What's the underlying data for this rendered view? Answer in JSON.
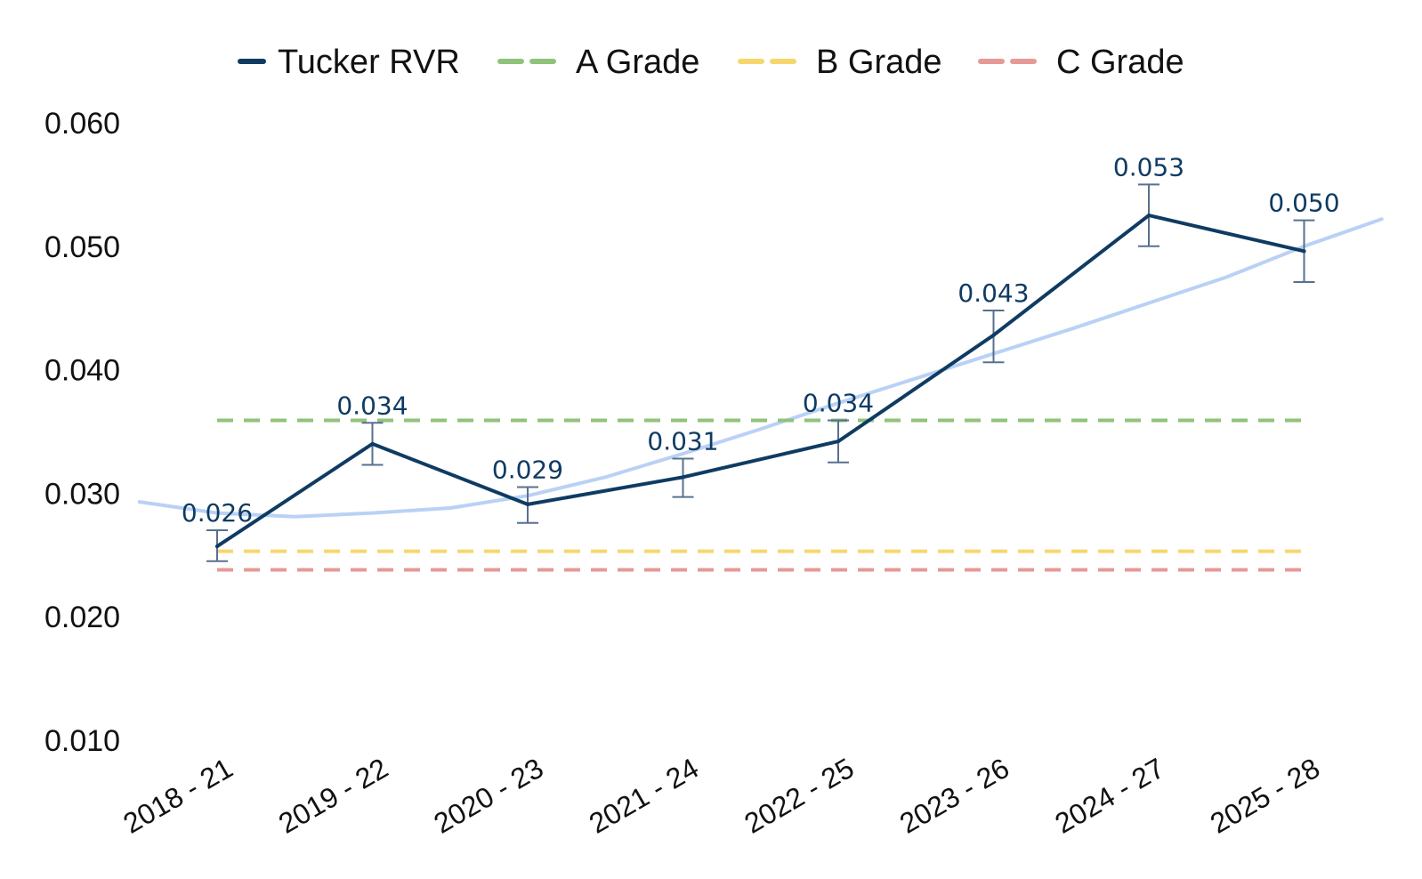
{
  "chart_data": {
    "type": "line",
    "title": "",
    "xlabel": "",
    "ylabel": "",
    "categories": [
      "2018 - 21",
      "2019 - 22",
      "2020 - 23",
      "2021 - 24",
      "2022 - 25",
      "2023 - 26",
      "2024 - 27",
      "2025 - 28"
    ],
    "ylim": [
      0.01,
      0.06
    ],
    "yticks": [
      "0.060",
      "0.050",
      "0.040",
      "0.030",
      "0.020",
      "0.010"
    ],
    "ytick_values": [
      0.06,
      0.05,
      0.04,
      0.03,
      0.02,
      0.01
    ],
    "grid": false,
    "legend_position": "top-center",
    "series": [
      {
        "name": "Tucker RVR",
        "color": "#0f3b63",
        "values": [
          0.0257,
          0.034,
          0.0291,
          0.0313,
          0.0342,
          0.0428,
          0.0525,
          0.0496
        ],
        "labels": [
          "0.026",
          "0.034",
          "0.029",
          "0.031",
          "0.034",
          "0.043",
          "0.053",
          "0.050"
        ],
        "error_low": [
          0.0245,
          0.0323,
          0.0276,
          0.0297,
          0.0325,
          0.0406,
          0.05,
          0.0471
        ],
        "error_high": [
          0.027,
          0.0357,
          0.0305,
          0.0328,
          0.0359,
          0.0448,
          0.055,
          0.0521
        ],
        "error_color": "#58708f"
      }
    ],
    "reference_lines": [
      {
        "name": "A Grade",
        "value": 0.0359,
        "color": "#8fc37a"
      },
      {
        "name": "B Grade",
        "value": 0.0253,
        "color": "#f7d66d"
      },
      {
        "name": "C Grade",
        "value": 0.0238,
        "color": "#e59a95"
      }
    ],
    "trend_line": {
      "color": "#b9d1f5",
      "x": [
        -0.5,
        0.0,
        0.5,
        1.0,
        1.5,
        2.0,
        2.5,
        3.0,
        3.5,
        4.0,
        4.5,
        5.0,
        5.5,
        6.0,
        6.5,
        7.0,
        7.5
      ],
      "values": [
        0.0293,
        0.0284,
        0.0281,
        0.0284,
        0.0288,
        0.0298,
        0.0313,
        0.0332,
        0.0352,
        0.0373,
        0.0393,
        0.0413,
        0.0433,
        0.0454,
        0.0475,
        0.05,
        0.0522
      ]
    }
  }
}
